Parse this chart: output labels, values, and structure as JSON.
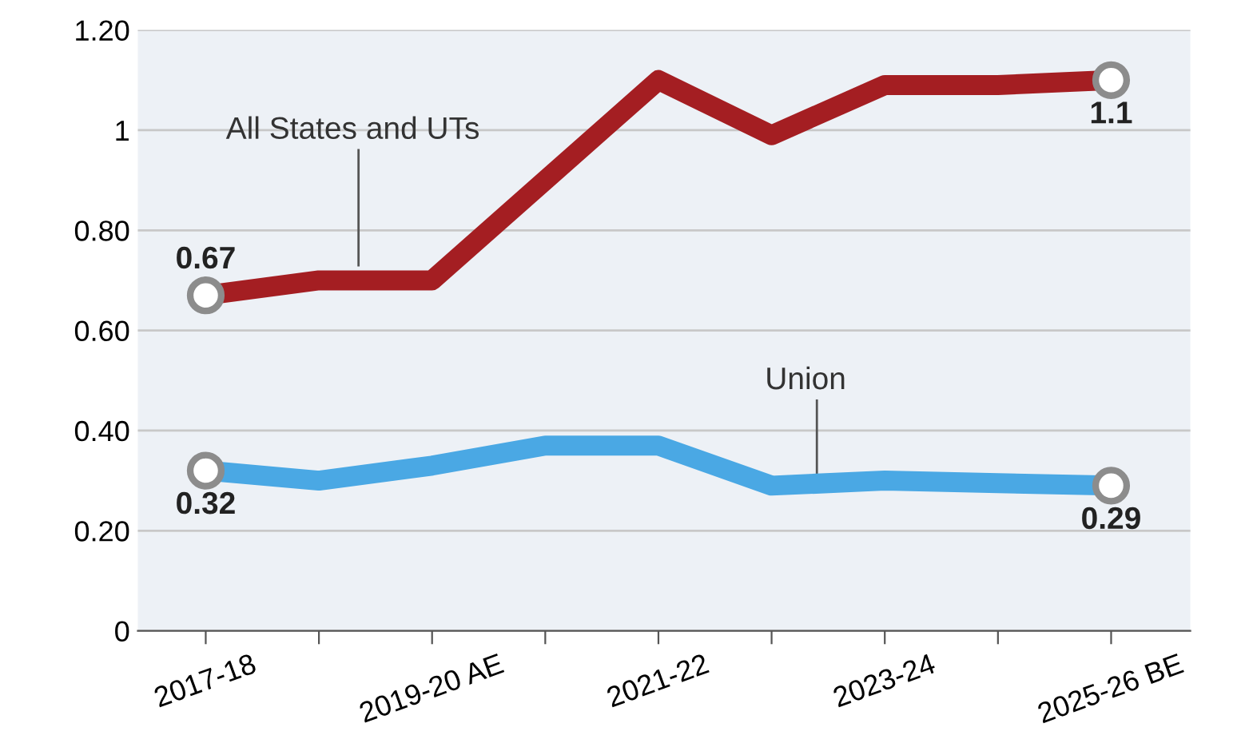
{
  "chart_data": {
    "type": "line",
    "categories": [
      "2017-18",
      null,
      "2019-20 AE",
      null,
      "2021-22",
      null,
      "2023-24",
      null,
      "2025-26 BE"
    ],
    "series": [
      {
        "name": "All States and UTs",
        "color": "#a41e22",
        "values": [
          0.67,
          0.7,
          0.7,
          0.9,
          1.1,
          0.99,
          1.09,
          1.09,
          1.1
        ],
        "value_labels": [
          "0.67",
          null,
          null,
          null,
          null,
          null,
          null,
          null,
          "1.1"
        ]
      },
      {
        "name": "Union",
        "color": "#4aa8e4",
        "values": [
          0.32,
          0.3,
          0.33,
          0.37,
          0.37,
          0.29,
          0.3,
          0.295,
          0.29
        ],
        "value_labels": [
          "0.32",
          null,
          null,
          null,
          null,
          null,
          null,
          null,
          "0.29"
        ]
      }
    ],
    "ylim": [
      0,
      1.2
    ],
    "yticks": [
      0,
      {
        "value": 0.2,
        "label": "0.20"
      },
      {
        "value": 0.4,
        "label": "0.40"
      },
      {
        "value": 0.6,
        "label": "0.60"
      },
      {
        "value": 0.8,
        "label": "0.80"
      },
      1,
      {
        "value": 1.2,
        "label": "1.20"
      }
    ],
    "grid": "y",
    "legend": false,
    "line_style": "solid"
  }
}
